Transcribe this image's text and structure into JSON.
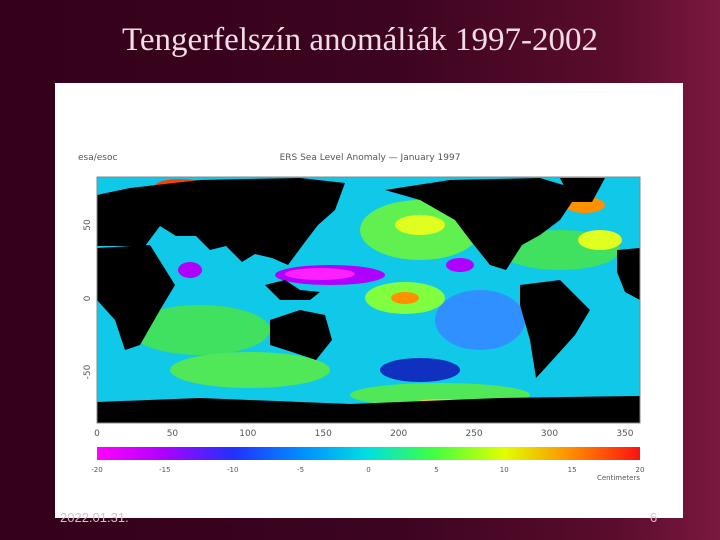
{
  "slide": {
    "title": "Tengerfelszín anomáliák 1997-2002",
    "date": "2022.01.31.",
    "page": "6",
    "figure": {
      "source": "esa/esoc",
      "title": "ERS Sea Level Anomaly — January 1997",
      "lat_ticks": [
        "50",
        "0",
        "-50"
      ],
      "lon_ticks": [
        "0",
        "50",
        "100",
        "150",
        "200",
        "250",
        "300",
        "350"
      ],
      "colorbar_ticks": [
        "-20",
        "-15",
        "-10",
        "-5",
        "0",
        "5",
        "10",
        "15",
        "20"
      ],
      "colorbar_unit": "Centimeters"
    }
  }
}
